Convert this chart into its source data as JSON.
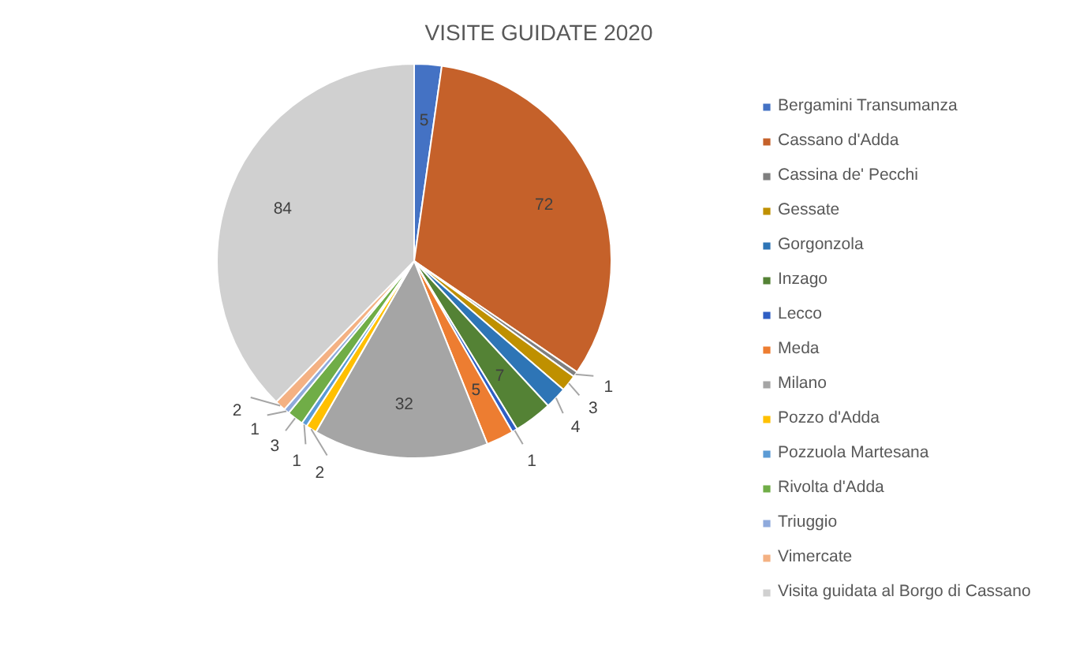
{
  "chart_data": {
    "type": "pie",
    "title": "VISITE GUIDATE 2020",
    "categories": [
      "Bergamini Transumanza",
      "Cassano d'Adda",
      "Cassina de' Pecchi",
      "Gessate",
      "Gorgonzola",
      "Inzago",
      "Lecco",
      "Meda",
      "Milano",
      "Pozzo d'Adda",
      "Pozzuola Martesana",
      "Rivolta d'Adda",
      "Triuggio",
      "Vimercate",
      "Visita guidata al Borgo di Cassano"
    ],
    "values": [
      5,
      72,
      1,
      3,
      4,
      7,
      1,
      5,
      32,
      2,
      1,
      3,
      1,
      2,
      84
    ],
    "colors": [
      "#4472c4",
      "#c5612a",
      "#7f7f7f",
      "#bf9000",
      "#2e75b6",
      "#548235",
      "#2f5fc4",
      "#ed7d31",
      "#a5a5a5",
      "#ffc000",
      "#5b9bd5",
      "#70ad47",
      "#8faadc",
      "#f4b183",
      "#d0d0d0"
    ],
    "data_labels": true,
    "legend": "right"
  }
}
